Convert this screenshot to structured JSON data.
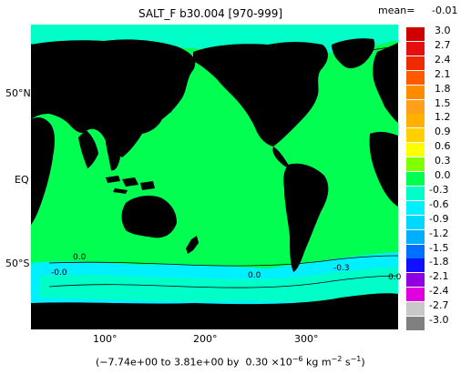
{
  "title": "SALT_F b30.004 [970-999]",
  "mean": {
    "label": "mean=",
    "value": "-0.01"
  },
  "colorbar": {
    "levels": [
      {
        "label": "3.0",
        "color": "#d00000"
      },
      {
        "label": "2.7",
        "color": "#e41010"
      },
      {
        "label": "2.4",
        "color": "#f02a00"
      },
      {
        "label": "2.1",
        "color": "#ff5a00"
      },
      {
        "label": "1.8",
        "color": "#ff8c00"
      },
      {
        "label": "1.5",
        "color": "#ffa01a"
      },
      {
        "label": "1.2",
        "color": "#ffb000"
      },
      {
        "label": "0.9",
        "color": "#ffd000"
      },
      {
        "label": "0.6",
        "color": "#ffff00"
      },
      {
        "label": "0.3",
        "color": "#80ff00"
      },
      {
        "label": "0.0",
        "color": "#00ff50"
      },
      {
        "label": "-0.3",
        "color": "#00ffc8"
      },
      {
        "label": "-0.6",
        "color": "#00f0ff"
      },
      {
        "label": "-0.9",
        "color": "#00d8ff"
      },
      {
        "label": "-1.2",
        "color": "#00b0ff"
      },
      {
        "label": "-1.5",
        "color": "#0070ff"
      },
      {
        "label": "-1.8",
        "color": "#1010ff"
      },
      {
        "label": "-2.1",
        "color": "#9000e0"
      },
      {
        "label": "-2.4",
        "color": "#e000e0"
      },
      {
        "label": "-2.7",
        "color": "#c8c8c8"
      },
      {
        "label": "-3.0",
        "color": "#808080"
      }
    ]
  },
  "lat_labels": {
    "n50": "50°N",
    "eq": "EQ",
    "s50": "50°S"
  },
  "lon_labels": {
    "l100": "100°",
    "l200": "200°",
    "l300": "300°"
  },
  "contour_labels": {
    "c0": "0.0",
    "c1": "-0.0",
    "c2": "0.0",
    "c3": "-0.3",
    "c4": "0.0"
  },
  "footer": {
    "range": "(−7.74e+00  to  3.81e+00 by",
    "interval": "0.30 ×10",
    "exp": "−6",
    "units": " kg m",
    "units_exp1": "−2",
    "units_s": " s",
    "units_exp2": "−1",
    "close": ")"
  },
  "colors": {
    "land": "#000000",
    "ocean": "#00ff50",
    "arctic": "#00ffc8",
    "southern": "#00f0ff",
    "contour": "#000000"
  }
}
